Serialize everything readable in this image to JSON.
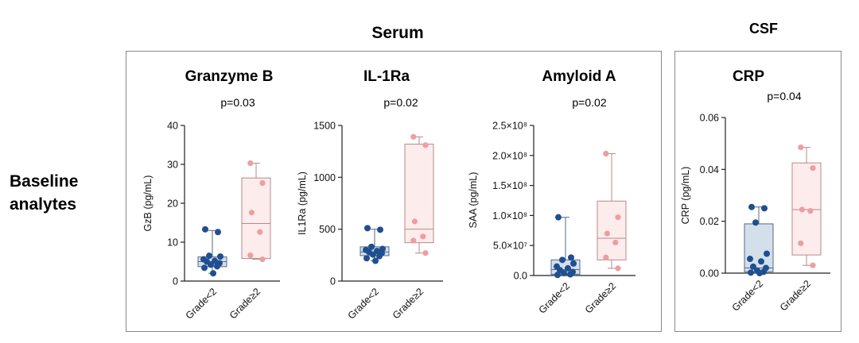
{
  "figure": {
    "serum_title": "Serum",
    "csf_title": "CSF",
    "row_label_line1": "Baseline",
    "row_label_line2": "analytes",
    "colors": {
      "group1_fill": "#d4dfec",
      "group1_point": "#1f4f8f",
      "group2_fill": "#fdecec",
      "group2_point": "#ee9da0",
      "axis": "#222222"
    }
  },
  "chart_data": [
    {
      "id": "gzb",
      "type": "boxplot",
      "panel": "Serum",
      "title": "Granzyme B",
      "pvalue": "p=0.03",
      "ylabel": "GzB (pg/mL)",
      "categories": [
        "Grade<2",
        "Grade≥2"
      ],
      "ylim": [
        0,
        40
      ],
      "yticks": [
        0,
        10,
        20,
        30,
        40
      ],
      "ytick_labels": [
        "0",
        "10",
        "20",
        "30",
        "40"
      ],
      "series": [
        {
          "name": "Grade<2",
          "q1": 3.7,
          "median": 5.0,
          "q3": 6.2,
          "whisker_low": 2.0,
          "whisker_high": 13.0,
          "points": [
            13.3,
            12.6,
            6.5,
            6.3,
            5.6,
            5.2,
            5.0,
            4.6,
            4.2,
            3.8,
            3.4,
            2.0
          ]
        },
        {
          "name": "Grade≥2",
          "q1": 5.8,
          "median": 14.8,
          "q3": 26.5,
          "whisker_low": 5.6,
          "whisker_high": 30.3,
          "points": [
            30.3,
            25.2,
            17.6,
            12.6,
            6.6,
            5.6
          ]
        }
      ]
    },
    {
      "id": "il1ra",
      "type": "boxplot",
      "panel": "Serum",
      "title": "IL-1Ra",
      "pvalue": "p=0.02",
      "ylabel": "IL1Ra (pg/mL)",
      "categories": [
        "Grade<2",
        "Grade≥2"
      ],
      "ylim": [
        0,
        1500
      ],
      "yticks": [
        0,
        500,
        1000,
        1500
      ],
      "ytick_labels": [
        "0",
        "500",
        "1000",
        "1500"
      ],
      "series": [
        {
          "name": "Grade<2",
          "q1": 245,
          "median": 280,
          "q3": 330,
          "whisker_low": 195,
          "whisker_high": 500,
          "points": [
            510,
            495,
            330,
            310,
            300,
            290,
            280,
            270,
            255,
            240,
            220,
            195
          ]
        },
        {
          "name": "Grade≥2",
          "q1": 370,
          "median": 500,
          "q3": 1320,
          "whisker_low": 270,
          "whisker_high": 1390,
          "points": [
            1390,
            1310,
            575,
            430,
            390,
            270
          ]
        }
      ]
    },
    {
      "id": "saa",
      "type": "boxplot",
      "panel": "Serum",
      "title": "Amyloid A",
      "pvalue": "p=0.02",
      "ylabel": "SAA (pg/mL)",
      "categories": [
        "Grade<2",
        "Grade≥2"
      ],
      "ylim": [
        0,
        250000000
      ],
      "yticks": [
        0,
        50000000,
        100000000,
        150000000,
        200000000,
        250000000
      ],
      "ytick_labels": [
        "0.0",
        "5.0×10⁷",
        "1.0×10⁸",
        "1.5×10⁸",
        "2.0×10⁸",
        "2.5×10⁸"
      ],
      "series": [
        {
          "name": "Grade<2",
          "q1": 2000000,
          "median": 10000000,
          "q3": 26000000,
          "whisker_low": 1000000,
          "whisker_high": 97000000,
          "points": [
            97000000,
            30000000,
            26000000,
            20000000,
            15000000,
            12000000,
            9000000,
            6000000,
            4000000,
            2000000,
            1000000
          ]
        },
        {
          "name": "Grade≥2",
          "q1": 26000000,
          "median": 62000000,
          "q3": 124000000,
          "whisker_low": 12000000,
          "whisker_high": 203000000,
          "points": [
            203000000,
            97000000,
            70000000,
            55000000,
            30000000,
            12000000
          ]
        }
      ]
    },
    {
      "id": "crp",
      "type": "boxplot",
      "panel": "CSF",
      "title": "CRP",
      "pvalue": "p=0.04",
      "ylabel": "CRP (pg/mL)",
      "categories": [
        "Grade<2",
        "Grade≥2"
      ],
      "ylim": [
        0,
        0.06
      ],
      "yticks": [
        0,
        0.02,
        0.04,
        0.06
      ],
      "ytick_labels": [
        "0.00",
        "0.02",
        "0.04",
        "0.06"
      ],
      "series": [
        {
          "name": "Grade<2",
          "q1": 0.0005,
          "median": 0.002,
          "q3": 0.019,
          "whisker_low": 0.0,
          "whisker_high": 0.0255,
          "points": [
            0.0255,
            0.025,
            0.0195,
            0.0075,
            0.0055,
            0.0045,
            0.0025,
            0.002,
            0.001,
            0.0005,
            0.0002,
            0.0
          ]
        },
        {
          "name": "Grade≥2",
          "q1": 0.007,
          "median": 0.0245,
          "q3": 0.0425,
          "whisker_low": 0.003,
          "whisker_high": 0.0485,
          "points": [
            0.0485,
            0.0405,
            0.0245,
            0.024,
            0.0115,
            0.003
          ]
        }
      ]
    }
  ]
}
